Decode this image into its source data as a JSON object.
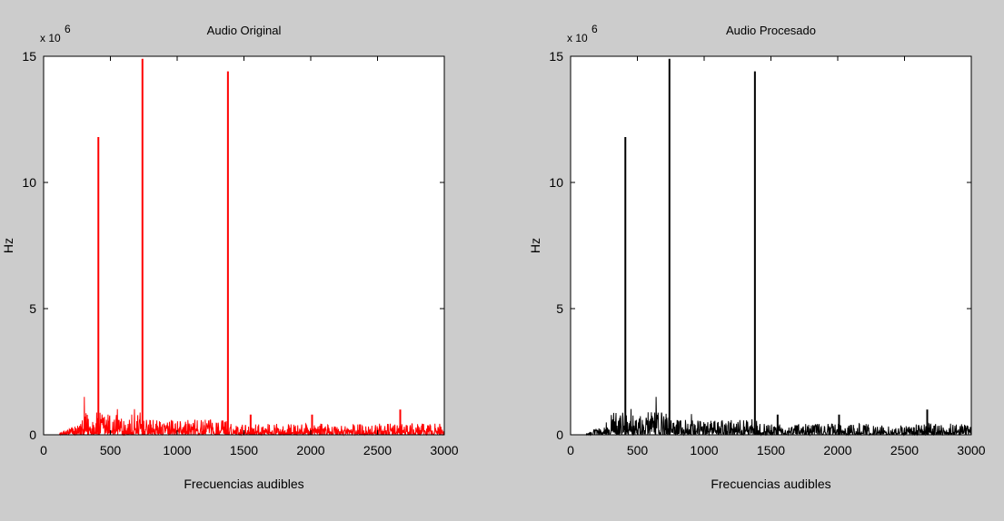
{
  "background_color": "#cccccc",
  "chart_data": [
    {
      "type": "line",
      "title": "Audio Original",
      "xlabel": "Frecuencias audibles",
      "ylabel": "Hz",
      "y_exponent_label": "x 10",
      "y_exponent": "6",
      "xlim": [
        0,
        3000
      ],
      "ylim": [
        0,
        15
      ],
      "xticks": [
        0,
        500,
        1000,
        1500,
        2000,
        2500,
        3000
      ],
      "yticks": [
        0,
        5,
        10,
        15
      ],
      "grid": false,
      "line_color": "#ff0000",
      "peaks": [
        {
          "x": 410,
          "y": 11.8
        },
        {
          "x": 740,
          "y": 14.9
        },
        {
          "x": 1380,
          "y": 14.4
        },
        {
          "x": 2670,
          "y": 1.0
        },
        {
          "x": 2010,
          "y": 0.8
        },
        {
          "x": 1550,
          "y": 0.8
        }
      ]
    },
    {
      "type": "line",
      "title": "Audio Procesado",
      "xlabel": "Frecuencias audibles",
      "ylabel": "Hz",
      "y_exponent_label": "x 10",
      "y_exponent": "6",
      "xlim": [
        0,
        3000
      ],
      "ylim": [
        0,
        15
      ],
      "xticks": [
        0,
        500,
        1000,
        1500,
        2000,
        2500,
        3000
      ],
      "yticks": [
        0,
        5,
        10,
        15
      ],
      "grid": false,
      "line_color": "#000000",
      "peaks": [
        {
          "x": 410,
          "y": 11.8
        },
        {
          "x": 740,
          "y": 14.9
        },
        {
          "x": 1380,
          "y": 14.4
        },
        {
          "x": 2670,
          "y": 1.0
        },
        {
          "x": 2010,
          "y": 0.8
        },
        {
          "x": 1550,
          "y": 0.8
        }
      ]
    }
  ]
}
